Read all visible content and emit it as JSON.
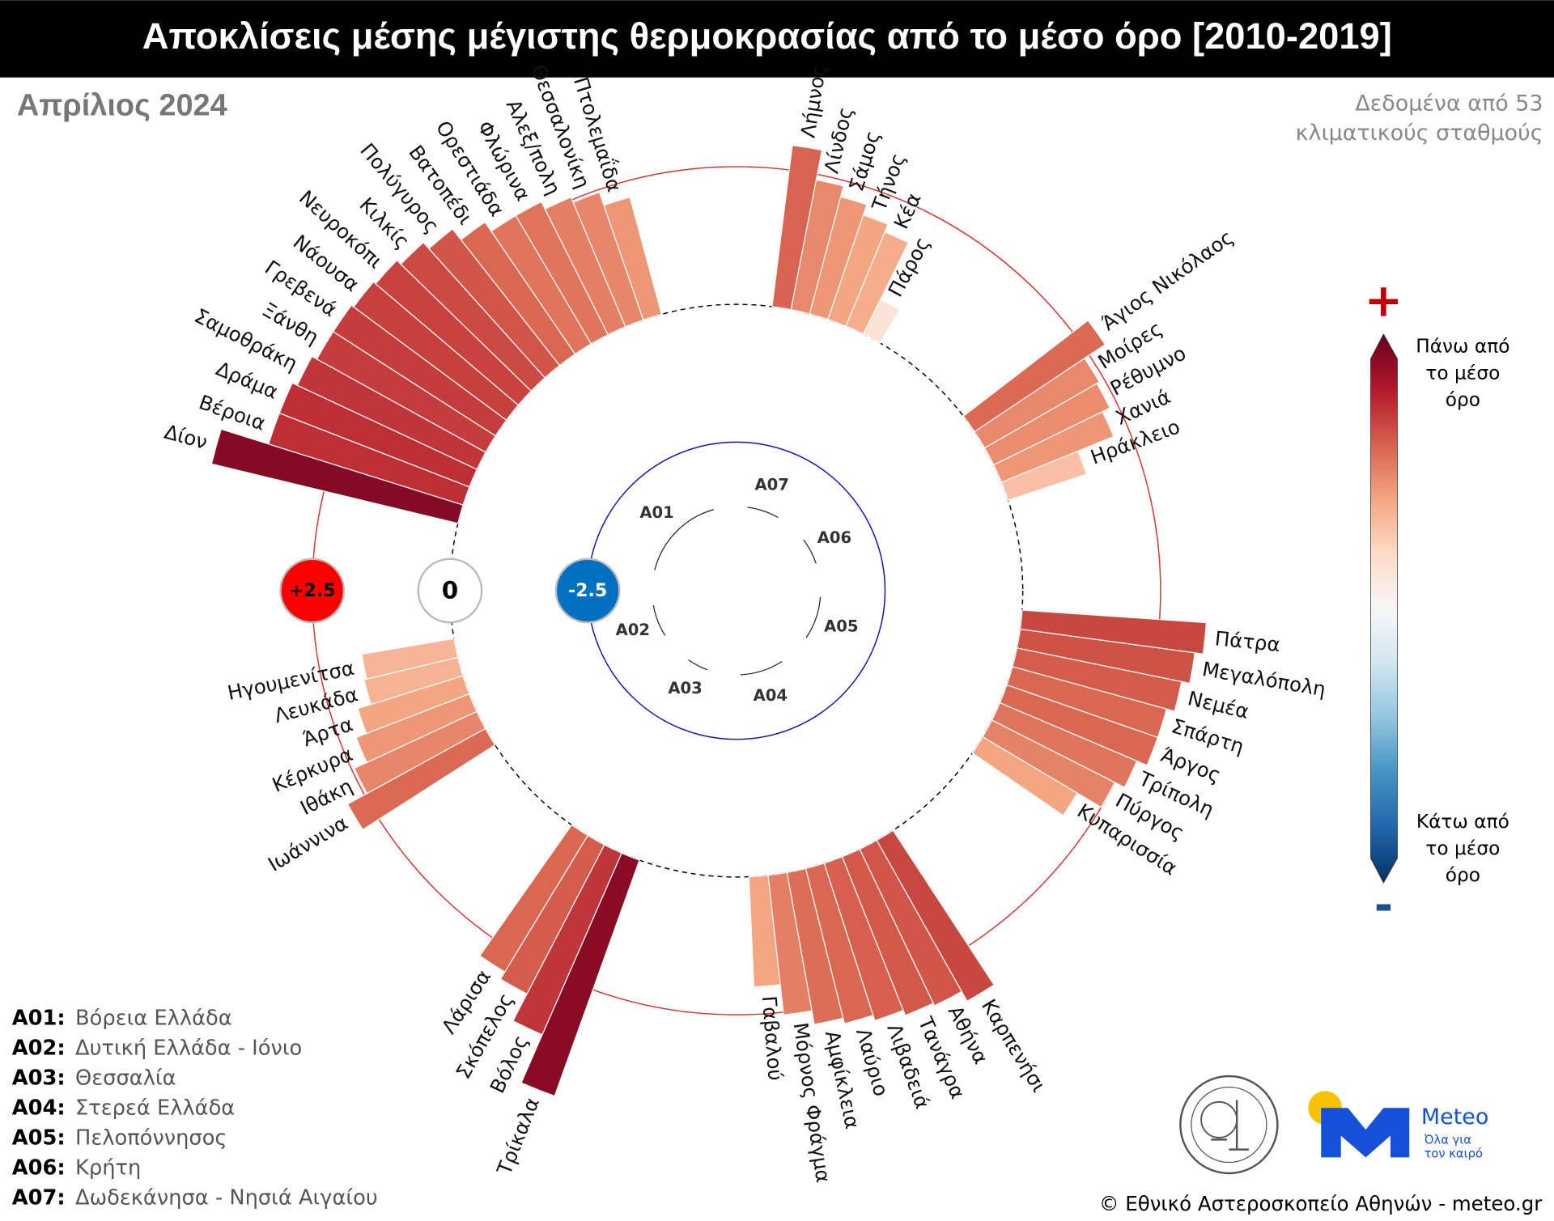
{
  "chart_data": {
    "type": "polar-bar",
    "title": "Αποκλίσεις μέσης μέγιστης θερμοκρασίας από το μέσο όρο [2010-2019]",
    "subtitle": "Απρίλιος 2024",
    "note": [
      "Δεδομένα από 53",
      "κλιματικούς σταθμούς"
    ],
    "groups": [
      {
        "code": "A01",
        "categories": [
          "Δίον",
          "Βέροια",
          "Δράμα",
          "Σαμοθράκη",
          "Ξάνθη",
          "Γρεβενά",
          "Νάουσα",
          "Νευροκόπι",
          "Κιλκίς",
          "Πολύγυρος",
          "Βατοπέδι",
          "Ορεστιάδα",
          "Φλώρινα",
          "Αλεξ/πολη",
          "Θεσσαλονίκη",
          "Πτολεμαΐδα"
        ],
        "values": [
          4.6,
          3.7,
          3.7,
          3.6,
          3.5,
          3.5,
          3.45,
          3.4,
          3.3,
          3.15,
          2.9,
          2.7,
          2.7,
          2.55,
          2.45,
          2.2
        ]
      },
      {
        "code": "A07",
        "categories": [
          "Λήμνος",
          "Λίνδος",
          "Σάμος",
          "Τήνος",
          "Κέα",
          "Πάρος"
        ],
        "values": [
          2.95,
          2.4,
          2.2,
          2.0,
          1.85,
          0.7
        ]
      },
      {
        "code": "A06",
        "categories": [
          "Άγιος Νικόλαος",
          "Μοίρες",
          "Ρέθυμνο",
          "Χανιά",
          "Ηράκλειο"
        ],
        "values": [
          2.85,
          2.4,
          2.35,
          2.2,
          1.5
        ]
      },
      {
        "code": "A05",
        "categories": [
          "Πάτρα",
          "Μεγαλόπολη",
          "Νεμέα",
          "Σπάρτη",
          "Άργος",
          "Τρίπολη",
          "Πύργος",
          "Κυπαρισσία"
        ],
        "values": [
          3.35,
          3.2,
          3.05,
          2.9,
          2.9,
          2.7,
          2.5,
          2.0
        ]
      },
      {
        "code": "A04",
        "categories": [
          "Καρπενήσι",
          "Αθήνα",
          "Τανάγρα",
          "Λιβαδειά",
          "Λαύριο",
          "Αμφίκλεια",
          "Μόρνος Φράγμα",
          "Γαβαλού"
        ],
        "values": [
          3.35,
          3.15,
          3.1,
          3.0,
          2.9,
          2.8,
          2.55,
          2.0
        ]
      },
      {
        "code": "A03",
        "categories": [
          "Τρίκαλα",
          "Βόλος",
          "Σκόπελος",
          "Λάρισα"
        ],
        "values": [
          4.55,
          3.6,
          3.05,
          2.9
        ]
      },
      {
        "code": "A02",
        "categories": [
          "Ιωάννινα",
          "Ιθάκη",
          "Κέρκυρα",
          "Άρτα",
          "Λευκάδα",
          "Ηγουμενίτσα"
        ],
        "values": [
          2.85,
          2.45,
          2.2,
          2.0,
          1.75,
          1.7
        ]
      }
    ],
    "rlim": [
      -5,
      5
    ],
    "rticks": [
      {
        "value": 2.5,
        "label": "+2.5"
      },
      0,
      -2.5
    ],
    "rtick_colors": [
      "#ff0000",
      "#ffffff",
      "#0070c0"
    ],
    "rtick_line_colors": [
      "#e03030",
      "#000000",
      "#1010c0"
    ],
    "colorscale": [
      "#053061",
      "#2166ac",
      "#4393c3",
      "#92c5de",
      "#d1e5f0",
      "#f7f7f7",
      "#fddbc7",
      "#f4a582",
      "#d6604d",
      "#b2182b",
      "#67001f"
    ],
    "clim": [
      -5,
      5
    ],
    "colorbar": {
      "plus": "+",
      "minus": "-",
      "top_label": [
        "Πάνω από",
        "το μέσο",
        "όρο"
      ],
      "bottom_label": [
        "Κάτω από",
        "το μέσο",
        "όρο"
      ]
    },
    "legend": [
      {
        "key": "A01:",
        "label": "Βόρεια Ελλάδα"
      },
      {
        "key": "A02:",
        "label": "Δυτική Ελλάδα - Ιόνιο"
      },
      {
        "key": "A03:",
        "label": "Θεσσαλία"
      },
      {
        "key": "A04:",
        "label": "Στερεά Ελλάδα"
      },
      {
        "key": "A05:",
        "label": "Πελοπόννησος"
      },
      {
        "key": "A06:",
        "label": "Κρήτη"
      },
      {
        "key": "A07:",
        "label": "Δωδεκάνησα - Νησιά Αιγαίου"
      }
    ],
    "logo": {
      "name": "Meteo",
      "tagline": [
        "Όλα για",
        "τον καιρό"
      ]
    },
    "footer": "© Εθνικό Αστεροσκοπείο Αθηνών - meteo.gr"
  }
}
